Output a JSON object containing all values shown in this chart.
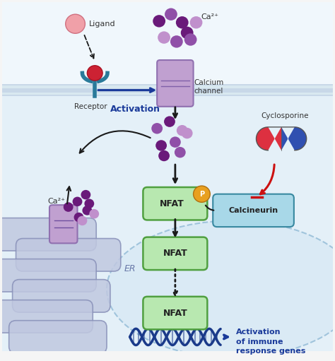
{
  "bg_outer": "#f5f5f5",
  "bg_cell": "#e8f3fa",
  "bg_outside": "#f0f7fc",
  "membrane_color": "#c5d8e8",
  "membrane_stripe1": "#d8e8f0",
  "nucleus_fc": "#daeaf5",
  "nucleus_ec": "#a0c0d8",
  "ligand_color": "#f0a0a8",
  "ligand_ec": "#d07080",
  "receptor_color": "#2a7a9a",
  "receptor_knob": "#cc2233",
  "ca_channel_color": "#c0a0d0",
  "ca_channel_ec": "#9070b0",
  "ca_dark": "#6a1a7a",
  "ca_mid": "#9050a8",
  "ca_light": "#c090cc",
  "nfat_fc": "#b8e8b0",
  "nfat_ec": "#50a040",
  "p_fc": "#e8a020",
  "p_ec": "#b07010",
  "calcineurin_fc": "#a8d8e8",
  "calcineurin_ec": "#3888a0",
  "er_fc": "#c8d0e8",
  "er_ec": "#8890b8",
  "dna_color": "#1a3a8a",
  "arrow_dark": "#1a1a1a",
  "arrow_blue": "#1a3a9a",
  "arrow_red": "#cc1111",
  "pill_red": "#dd3040",
  "pill_blue": "#3050b0",
  "text_dark": "#333333",
  "text_blue": "#1a3a9a",
  "text_er": "#6878a8",
  "ligand_label": "Ligand",
  "receptor_label": "Receptor",
  "activation_label": "Activation",
  "ca_channel_label": "Calcium\nchannel",
  "ca2_label": "Ca²⁺",
  "cyclosporine_label": "Cyclosporine",
  "calcineurin_label": "Calcineurin",
  "nfat_label": "NFAT",
  "p_label": "P",
  "er_label": "ER",
  "immune_label": "Activation\nof immune\nresponse genes"
}
